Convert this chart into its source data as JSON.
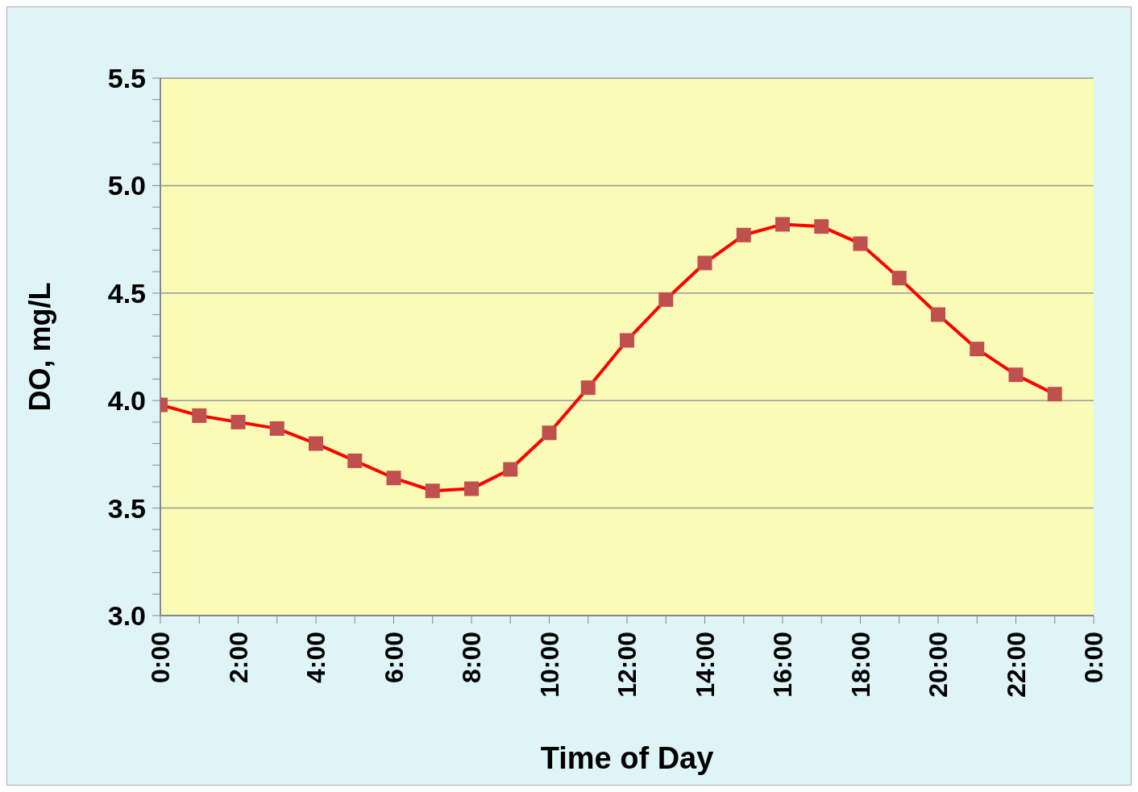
{
  "chart_data": {
    "type": "line",
    "xlabel": "Time of Day",
    "ylabel": "DO, mg/L",
    "x": [
      0,
      1,
      2,
      3,
      4,
      5,
      6,
      7,
      8,
      9,
      10,
      11,
      12,
      13,
      14,
      15,
      16,
      17,
      18,
      19,
      20,
      21,
      22,
      23
    ],
    "series": [
      {
        "color": "#ff0000",
        "values": [
          3.98,
          3.93,
          3.9,
          3.87,
          3.8,
          3.72,
          3.64,
          3.58,
          3.59,
          3.68,
          3.85,
          4.06,
          4.28,
          4.47,
          4.64,
          4.77,
          4.82,
          4.81,
          4.73,
          4.57,
          4.4,
          4.24,
          4.12,
          4.03
        ]
      }
    ],
    "xlim": [
      0,
      24
    ],
    "xticks": [
      {
        "value": 0,
        "label": "0:00"
      },
      {
        "value": 1,
        "label": null
      },
      {
        "value": 2,
        "label": "2:00"
      },
      {
        "value": 3,
        "label": null
      },
      {
        "value": 4,
        "label": "4:00"
      },
      {
        "value": 5,
        "label": null
      },
      {
        "value": 6,
        "label": "6:00"
      },
      {
        "value": 7,
        "label": null
      },
      {
        "value": 8,
        "label": "8:00"
      },
      {
        "value": 9,
        "label": null
      },
      {
        "value": 10,
        "label": "10:00"
      },
      {
        "value": 11,
        "label": null
      },
      {
        "value": 12,
        "label": "12:00"
      },
      {
        "value": 13,
        "label": null
      },
      {
        "value": 14,
        "label": "14:00"
      },
      {
        "value": 15,
        "label": null
      },
      {
        "value": 16,
        "label": "16:00"
      },
      {
        "value": 17,
        "label": null
      },
      {
        "value": 18,
        "label": "18:00"
      },
      {
        "value": 19,
        "label": null
      },
      {
        "value": 20,
        "label": "20:00"
      },
      {
        "value": 21,
        "label": null
      },
      {
        "value": 22,
        "label": "22:00"
      },
      {
        "value": 23,
        "label": null
      },
      {
        "value": 24,
        "label": "0:00"
      }
    ],
    "ylim": [
      3.0,
      5.5
    ],
    "yticks": [
      {
        "value": 3.0,
        "label": "3.0"
      },
      {
        "value": 3.1,
        "label": null
      },
      {
        "value": 3.2,
        "label": null
      },
      {
        "value": 3.3,
        "label": null
      },
      {
        "value": 3.4,
        "label": null
      },
      {
        "value": 3.5,
        "label": "3.5"
      },
      {
        "value": 3.6,
        "label": null
      },
      {
        "value": 3.7,
        "label": null
      },
      {
        "value": 3.8,
        "label": null
      },
      {
        "value": 3.9,
        "label": null
      },
      {
        "value": 4.0,
        "label": "4.0"
      },
      {
        "value": 4.1,
        "label": null
      },
      {
        "value": 4.2,
        "label": null
      },
      {
        "value": 4.3,
        "label": null
      },
      {
        "value": 4.4,
        "label": null
      },
      {
        "value": 4.5,
        "label": "4.5"
      },
      {
        "value": 4.6,
        "label": null
      },
      {
        "value": 4.7,
        "label": null
      },
      {
        "value": 4.8,
        "label": null
      },
      {
        "value": 4.9,
        "label": null
      },
      {
        "value": 5.0,
        "label": "5.0"
      },
      {
        "value": 5.1,
        "label": null
      },
      {
        "value": 5.2,
        "label": null
      },
      {
        "value": 5.3,
        "label": null
      },
      {
        "value": 5.4,
        "label": null
      },
      {
        "value": 5.5,
        "label": "5.5"
      }
    ],
    "grid": "y",
    "marker": "square",
    "line_style": "solid"
  }
}
